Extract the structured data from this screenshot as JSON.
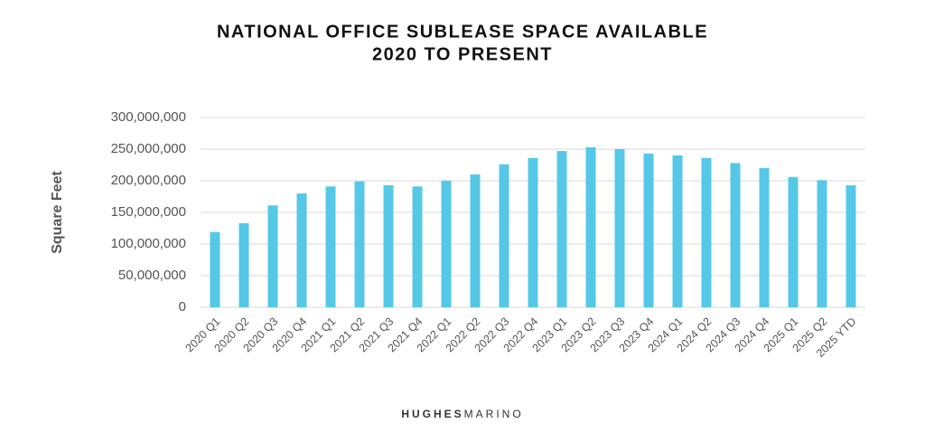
{
  "chart_data": {
    "type": "bar",
    "title": "NATIONAL OFFICE SUBLEASE SPACE AVAILABLE",
    "subtitle": "2020 TO PRESENT",
    "y_label": "Square Feet",
    "categories": [
      "2020 Q1",
      "2020 Q2",
      "2020 Q3",
      "2020 Q4",
      "2021 Q1",
      "2021 Q2",
      "2021 Q3",
      "2021 Q4",
      "2022 Q1",
      "2022 Q2",
      "2022 Q3",
      "2022 Q4",
      "2023 Q1",
      "2023 Q2",
      "2023 Q3",
      "2023 Q4",
      "2024 Q1",
      "2024 Q2",
      "2024 Q3",
      "2024 Q4",
      "2025 Q1",
      "2025 Q2",
      "2025 YTD"
    ],
    "values": [
      119000000,
      133000000,
      161000000,
      180000000,
      191000000,
      199000000,
      193000000,
      191000000,
      200000000,
      210000000,
      226000000,
      236000000,
      247000000,
      253000000,
      250000000,
      243000000,
      240000000,
      236000000,
      228000000,
      220000000,
      206000000,
      201000000,
      193000000
    ],
    "color": "#55c8e8",
    "ylim": [
      0,
      300000000
    ],
    "yticks": [
      0,
      {
        "value": 50000000,
        "label": "50,000,000"
      },
      {
        "value": 100000000,
        "label": "100,000,000"
      },
      {
        "value": 150000000,
        "label": "150,000,000"
      },
      {
        "value": 200000000,
        "label": "200,000,000"
      },
      {
        "value": 250000000,
        "label": "250,000,000"
      },
      {
        "value": 300000000,
        "label": "300,000,000"
      }
    ],
    "grid": true
  },
  "footer": {
    "brand_bold": "HUGHES",
    "brand_light": "MARINO"
  }
}
